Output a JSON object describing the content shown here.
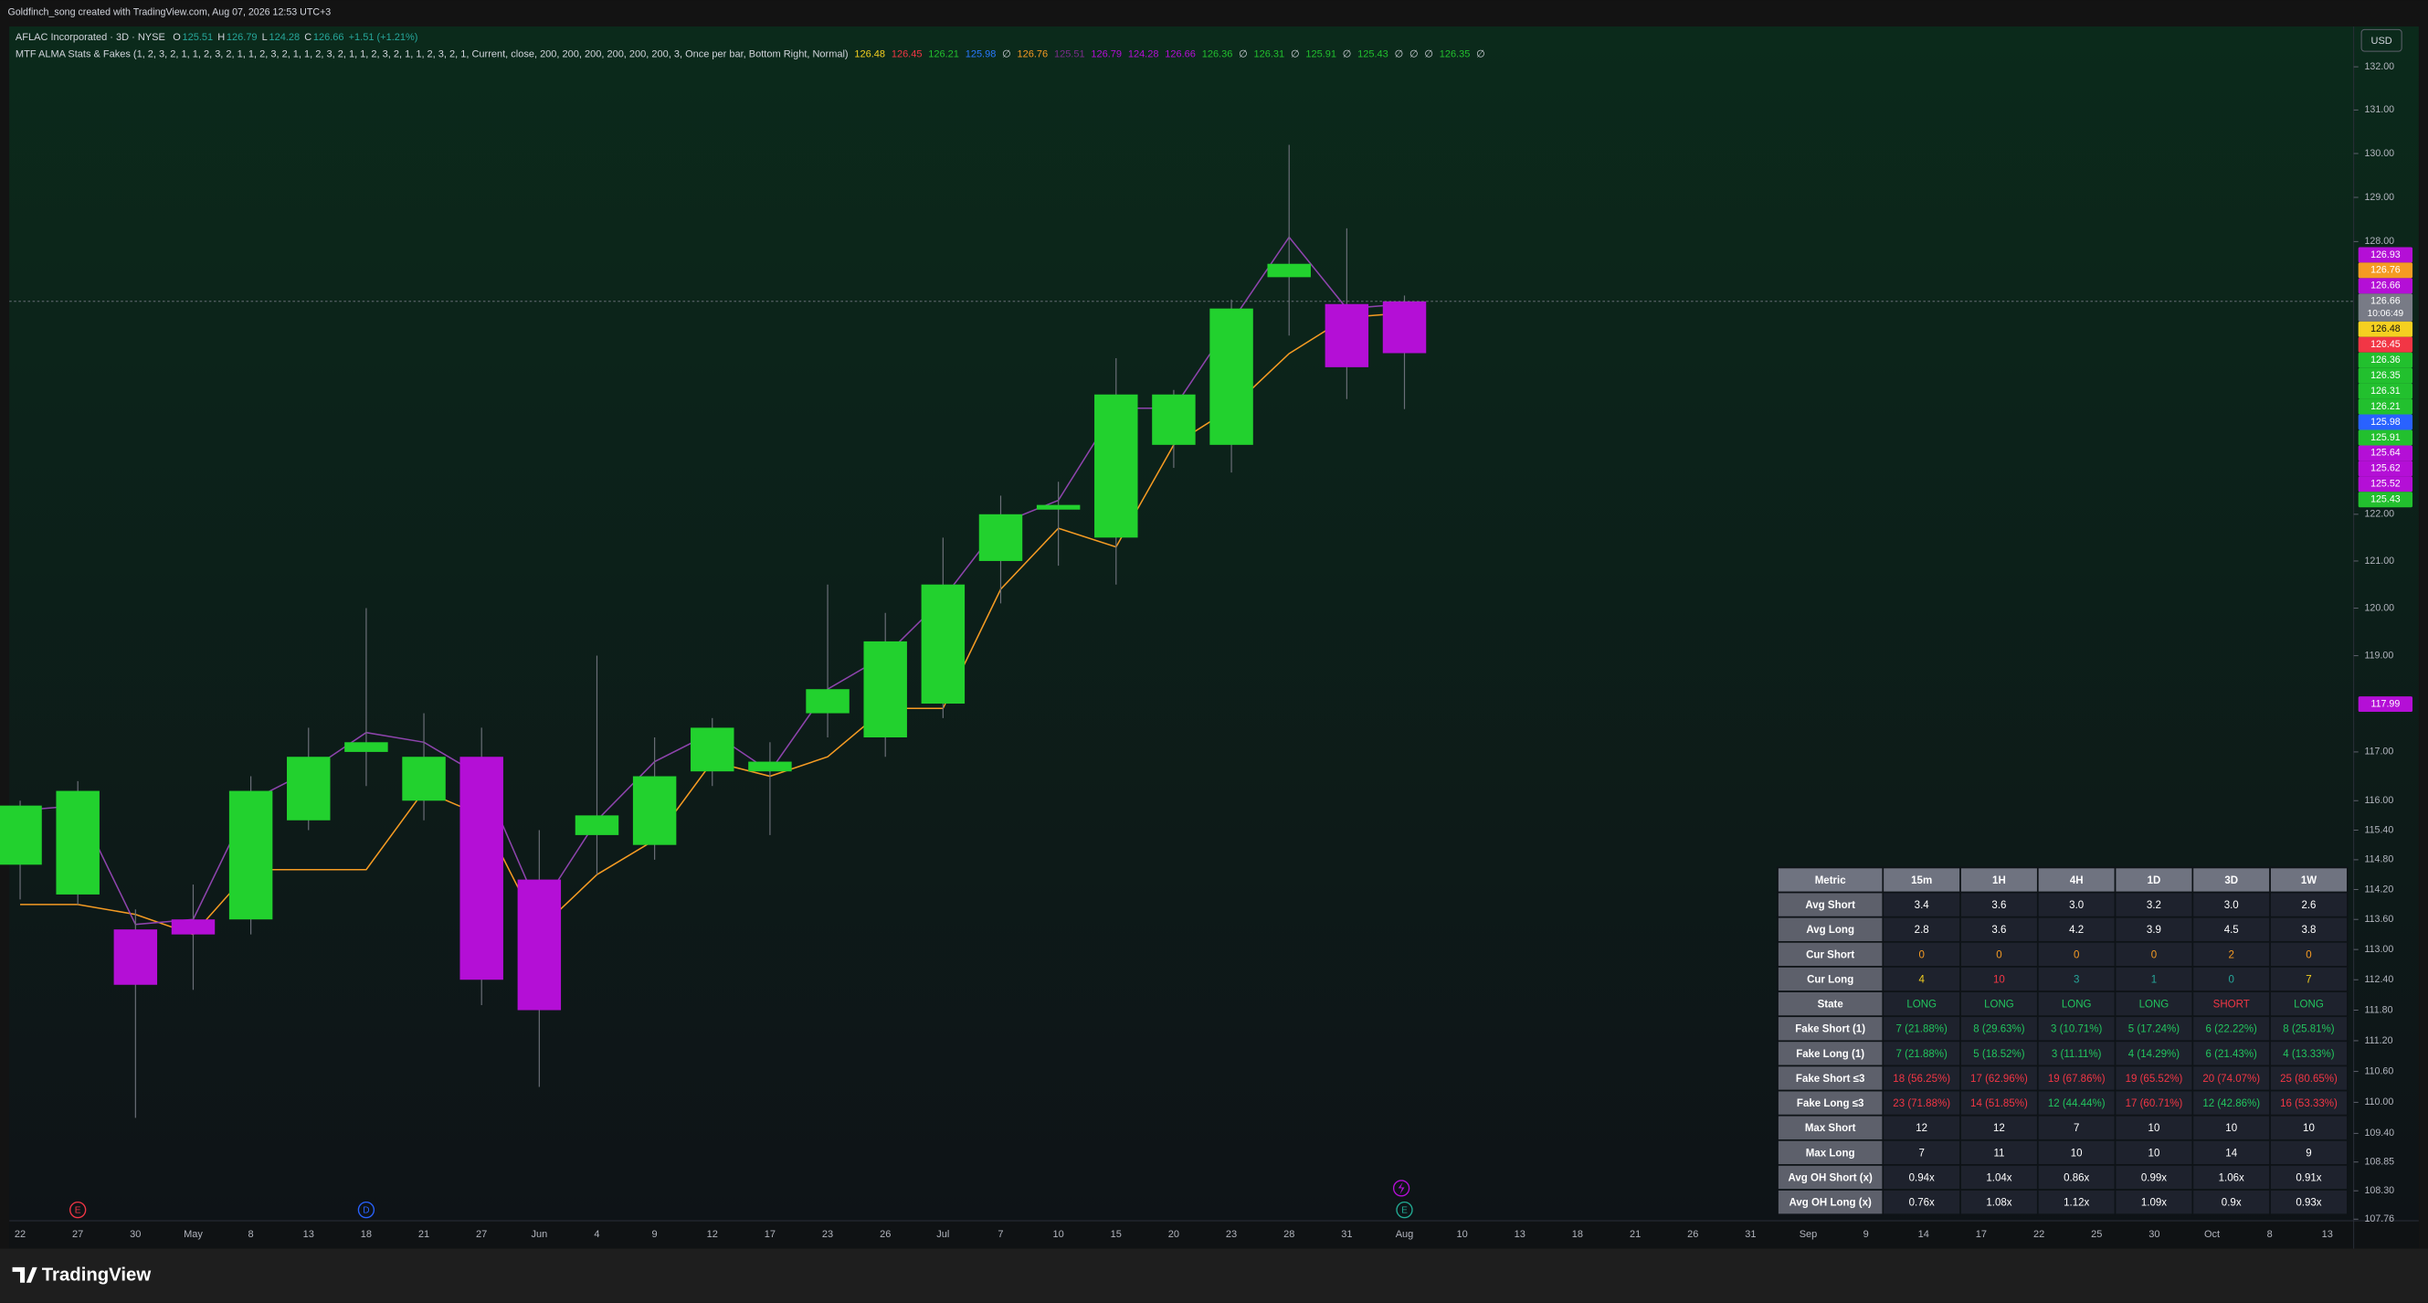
{
  "header": {
    "text": "Goldfinch_song created with TradingView.com, Aug 07, 2026 12:53 UTC+3"
  },
  "legend": {
    "symbol": "AFLAC Incorporated · 3D · NYSE",
    "ohlc_labels": [
      "O",
      "H",
      "L",
      "C"
    ],
    "change": "+1.51 (+1.21%)",
    "indicator": "MTF ALMA Stats & Fakes (1, 2, 3, 2, 1, 1, 2, 3, 2, 1, 1, 2, 3, 2, 1, 1, 2, 3, 2, 1, 1, 2, 3, 2, 1, 1, 2, 3, 2, 1, Current, close, 200, 200, 200, 200, 200, 200, 3, Once per bar, Bottom Right, Normal)",
    "indicator_values": [
      {
        "value": 126.48,
        "color": "#f5d020"
      },
      {
        "value": 126.45,
        "color": "#f23645"
      },
      {
        "value": 126.21,
        "color": "#22c02e"
      },
      {
        "value": 125.98,
        "color": "#2979ff"
      },
      "∅",
      {
        "value": 126.76,
        "color": "#f59b23"
      },
      {
        "value": 125.51,
        "color": "#7b2d8a"
      },
      {
        "value": 126.79,
        "color": "#b40fd6"
      },
      {
        "value": 124.28,
        "color": "#b40fd6"
      },
      {
        "value": 126.66,
        "color": "#b40fd6"
      },
      {
        "value": 126.36,
        "color": "#22c02e"
      },
      "∅",
      {
        "value": 126.31,
        "color": "#22c02e"
      },
      "∅",
      {
        "value": 125.91,
        "color": "#22c02e"
      },
      "∅",
      {
        "value": 125.43,
        "color": "#22c02e"
      },
      "∅",
      "∅",
      "∅",
      {
        "value": 126.35,
        "color": "#22c02e"
      },
      "∅"
    ]
  },
  "chart_data": {
    "type": "candlestick",
    "categories": [
      "22",
      "27",
      "30",
      "May",
      "8",
      "13",
      "18",
      "21",
      "27",
      "Jun",
      "4",
      "9",
      "12",
      "17",
      "23",
      "26",
      "Jul",
      "7",
      "10",
      "15",
      "20",
      "23",
      "28",
      "31",
      "Aug",
      "10",
      "13",
      "18",
      "21",
      "26",
      "31",
      "Sep",
      "9",
      "14",
      "17",
      "22",
      "25",
      "30",
      "Oct",
      "8",
      "13"
    ],
    "open": [
      114.7,
      114.1,
      113.4,
      113.6,
      113.6,
      115.6,
      117.0,
      116.0,
      116.9,
      114.4,
      115.3,
      115.1,
      116.6,
      116.6,
      117.8,
      117.3,
      118.0,
      121.0,
      122.1,
      121.5,
      123.5,
      123.5,
      127.2,
      126.6,
      125.51,
      null,
      null,
      null,
      null,
      null,
      null,
      null,
      null,
      null,
      null,
      null,
      null,
      null,
      null,
      null,
      null
    ],
    "high": [
      116.0,
      116.4,
      113.8,
      114.3,
      116.5,
      117.5,
      120.0,
      117.8,
      117.5,
      115.4,
      119.0,
      117.3,
      117.7,
      117.2,
      120.5,
      119.9,
      121.5,
      122.4,
      122.7,
      125.4,
      124.7,
      126.7,
      130.2,
      128.3,
      126.79,
      null,
      null,
      null,
      null,
      null,
      null,
      null,
      null,
      null,
      null,
      null,
      null,
      null,
      null,
      null,
      null
    ],
    "low": [
      114.0,
      113.9,
      109.7,
      112.2,
      113.3,
      115.4,
      116.3,
      115.6,
      111.9,
      110.3,
      114.5,
      114.8,
      116.3,
      115.3,
      117.3,
      116.9,
      117.7,
      120.1,
      120.9,
      120.5,
      123.0,
      122.9,
      125.9,
      124.5,
      124.28,
      null,
      null,
      null,
      null,
      null,
      null,
      null,
      null,
      null,
      null,
      null,
      null,
      null,
      null,
      null,
      null
    ],
    "close": [
      115.9,
      116.2,
      112.3,
      113.3,
      116.2,
      116.9,
      117.2,
      116.9,
      112.4,
      111.8,
      115.7,
      116.5,
      117.5,
      116.8,
      118.3,
      119.3,
      120.5,
      122.0,
      122.2,
      124.6,
      124.6,
      126.5,
      127.5,
      125.2,
      126.66,
      null,
      null,
      null,
      null,
      null,
      null,
      null,
      null,
      null,
      null,
      null,
      null,
      null,
      null,
      null,
      null
    ],
    "bar_colors": [
      "#22d12e",
      "#22d12e",
      "#b40fd6",
      "#b40fd6",
      "#22d12e",
      "#22d12e",
      "#22d12e",
      "#22d12e",
      "#b40fd6",
      "#b40fd6",
      "#22d12e",
      "#22d12e",
      "#22d12e",
      "#22d12e",
      "#22d12e",
      "#22d12e",
      "#22d12e",
      "#22d12e",
      "#22d12e",
      "#22d12e",
      "#22d12e",
      "#22d12e",
      "#22d12e",
      "#b40fd6",
      "#b40fd6",
      null,
      null,
      null,
      null,
      null,
      null,
      null,
      null,
      null,
      null,
      null,
      null,
      null,
      null,
      null,
      null
    ],
    "wick_color": "#6b6f78",
    "overlays": [
      {
        "color": "#f59b23",
        "values": [
          113.9,
          113.9,
          113.7,
          113.3,
          114.6,
          114.6,
          114.6,
          116.2,
          115.7,
          113.4,
          114.5,
          115.2,
          116.8,
          116.5,
          116.9,
          117.9,
          117.9,
          120.4,
          121.7,
          121.3,
          123.5,
          124.3,
          125.5,
          126.3,
          126.4,
          null,
          null,
          null,
          null,
          null,
          null,
          null,
          null,
          null,
          null,
          null,
          null,
          null,
          null,
          null,
          null
        ]
      },
      {
        "color": "#8e44ad",
        "values": [
          115.8,
          115.9,
          113.5,
          113.6,
          116.0,
          116.6,
          117.4,
          117.2,
          116.5,
          113.8,
          115.6,
          116.8,
          117.4,
          116.6,
          118.3,
          119.0,
          120.2,
          121.8,
          122.3,
          124.3,
          124.3,
          126.2,
          128.1,
          126.5,
          126.6,
          null,
          null,
          null,
          null,
          null,
          null,
          null,
          null,
          null,
          null,
          null,
          null,
          null,
          null,
          null,
          null
        ]
      }
    ],
    "log_scale": true,
    "ylim": [
      107.76,
      132.94
    ],
    "yticks": [
      {
        "value": 132,
        "label": "132.00"
      },
      {
        "value": 131,
        "label": "131.00"
      },
      {
        "value": 130,
        "label": "130.00"
      },
      {
        "value": 129,
        "label": "129.00"
      },
      {
        "value": 128,
        "label": "128.00"
      },
      {
        "value": 122,
        "label": "122.00"
      },
      {
        "value": 121,
        "label": "121.00"
      },
      {
        "value": 120,
        "label": "120.00"
      },
      {
        "value": 119,
        "label": "119.00"
      },
      {
        "value": 117,
        "label": "117.00"
      },
      {
        "value": 116,
        "label": "116.00"
      },
      {
        "value": 115.4,
        "label": "115.40"
      },
      {
        "value": 114.8,
        "label": "114.80"
      },
      {
        "value": 114.2,
        "label": "114.20"
      },
      {
        "value": 113.6,
        "label": "113.60"
      },
      {
        "value": 113,
        "label": "113.00"
      },
      {
        "value": 112.4,
        "label": "112.40"
      },
      {
        "value": 111.8,
        "label": "111.80"
      },
      {
        "value": 111.2,
        "label": "111.20"
      },
      {
        "value": 110.6,
        "label": "110.60"
      },
      {
        "value": 110,
        "label": "110.00"
      },
      {
        "value": 109.4,
        "label": "109.40"
      },
      108.85,
      {
        "value": 108.3,
        "label": "108.30"
      },
      107.76
    ],
    "currency": "USD",
    "price_labels": [
      {
        "value": 126.93,
        "color": "#b40fd6"
      },
      {
        "value": 126.76,
        "color": "#f59b23"
      },
      {
        "value": 126.66,
        "color": "#b40fd6"
      },
      {
        "value": 126.66,
        "color": "#787b86",
        "time": "10:06:49"
      },
      {
        "value": 126.48,
        "color": "#f5d020"
      },
      {
        "value": 126.45,
        "color": "#f23645"
      },
      {
        "value": 126.36,
        "color": "#22c02e"
      },
      {
        "value": 126.35,
        "color": "#22c02e"
      },
      {
        "value": 126.31,
        "color": "#22c02e"
      },
      {
        "value": 126.21,
        "color": "#22c02e"
      },
      {
        "value": 125.98,
        "color": "#2962ff"
      },
      {
        "value": 125.91,
        "color": "#22c02e"
      },
      {
        "value": 125.64,
        "color": "#b40fd6"
      },
      {
        "value": 125.62,
        "color": "#b40fd6"
      },
      {
        "value": 125.52,
        "color": "#b40fd6"
      },
      {
        "value": 125.43,
        "color": "#22c02e"
      },
      {
        "value": 117.99,
        "color": "#b40fd6"
      }
    ],
    "events": [
      {
        "label": "E",
        "at": 1,
        "color": "#f23645"
      },
      {
        "label": "D",
        "at": 6,
        "color": "#2962ff"
      },
      {
        "label": "E",
        "at": 24,
        "color": "#22ab94"
      }
    ]
  },
  "table": {
    "header": [
      "Metric",
      "15m",
      "1H",
      "4H",
      "1D",
      "3D",
      "1W"
    ],
    "rows": [
      {
        "cells": [
          "Avg Short",
          "3.4",
          "3.6",
          "3.0",
          "3.2",
          "3.0",
          "2.6"
        ],
        "colors": [
          "#ffffff",
          "#ffffff",
          "#ffffff",
          "#ffffff",
          "#ffffff",
          "#ffffff"
        ]
      },
      {
        "cells": [
          "Avg Long",
          "2.8",
          "3.6",
          "4.2",
          "3.9",
          "4.5",
          "3.8"
        ],
        "colors": [
          "#ffffff",
          "#ffffff",
          "#ffffff",
          "#ffffff",
          "#ffffff",
          "#ffffff"
        ]
      },
      {
        "cells": [
          "Cur Short",
          "0",
          "0",
          "0",
          "0",
          "2",
          "0"
        ],
        "colors": [
          "#f59b23",
          "#f59b23",
          "#f59b23",
          "#f59b23",
          "#f59b23",
          "#f59b23"
        ]
      },
      {
        "cells": [
          "Cur Long",
          "4",
          "10",
          "3",
          "1",
          "0",
          "7"
        ],
        "colors": [
          "#f5d020",
          "#f23645",
          "#26a69a",
          "#26a69a",
          "#26a69a",
          "#f5d020"
        ]
      },
      {
        "cells": [
          "State",
          "LONG",
          "LONG",
          "LONG",
          "LONG",
          "SHORT",
          "LONG"
        ],
        "colors": [
          "#22c55e",
          "#22c55e",
          "#22c55e",
          "#22c55e",
          "#f23645",
          "#22c55e"
        ]
      },
      {
        "cells": [
          "Fake Short (1)",
          "7 (21.88%)",
          "8 (29.63%)",
          "3 (10.71%)",
          "5 (17.24%)",
          "6 (22.22%)",
          "8 (25.81%)"
        ],
        "colors": [
          "#22c55e",
          "#22c55e",
          "#22c55e",
          "#22c55e",
          "#22c55e",
          "#22c55e"
        ]
      },
      {
        "cells": [
          "Fake Long (1)",
          "7 (21.88%)",
          "5 (18.52%)",
          "3 (11.11%)",
          "4 (14.29%)",
          "6 (21.43%)",
          "4 (13.33%)"
        ],
        "colors": [
          "#22c55e",
          "#22c55e",
          "#22c55e",
          "#22c55e",
          "#22c55e",
          "#22c55e"
        ]
      },
      {
        "cells": [
          "Fake Short ≤3",
          "18 (56.25%)",
          "17 (62.96%)",
          "19 (67.86%)",
          "19 (65.52%)",
          "20 (74.07%)",
          "25 (80.65%)"
        ],
        "colors": [
          "#f23645",
          "#f23645",
          "#f23645",
          "#f23645",
          "#f23645",
          "#f23645"
        ]
      },
      {
        "cells": [
          "Fake Long ≤3",
          "23 (71.88%)",
          "14 (51.85%)",
          "12 (44.44%)",
          "17 (60.71%)",
          "12 (42.86%)",
          "16 (53.33%)"
        ],
        "colors": [
          "#f23645",
          "#f23645",
          "#22c55e",
          "#f23645",
          "#22c55e",
          "#f23645"
        ]
      },
      {
        "cells": [
          "Max Short",
          "12",
          "12",
          "7",
          "10",
          "10",
          "10"
        ],
        "colors": [
          "#ffffff",
          "#ffffff",
          "#ffffff",
          "#ffffff",
          "#ffffff",
          "#ffffff"
        ]
      },
      {
        "cells": [
          "Max Long",
          "7",
          "11",
          "10",
          "10",
          "14",
          "9"
        ],
        "colors": [
          "#ffffff",
          "#ffffff",
          "#ffffff",
          "#ffffff",
          "#ffffff",
          "#ffffff"
        ]
      },
      {
        "cells": [
          "Avg OH Short (x)",
          "0.94x",
          "1.04x",
          "0.86x",
          "0.99x",
          "1.06x",
          "0.91x"
        ],
        "colors": [
          "#ffffff",
          "#ffffff",
          "#ffffff",
          "#ffffff",
          "#ffffff",
          "#ffffff"
        ]
      },
      {
        "cells": [
          "Avg OH Long (x)",
          "0.76x",
          "1.08x",
          "1.12x",
          "1.09x",
          "0.9x",
          "0.93x"
        ],
        "colors": [
          "#ffffff",
          "#ffffff",
          "#ffffff",
          "#ffffff",
          "#ffffff",
          "#ffffff"
        ]
      }
    ]
  },
  "footer": {
    "brand": "TradingView"
  }
}
